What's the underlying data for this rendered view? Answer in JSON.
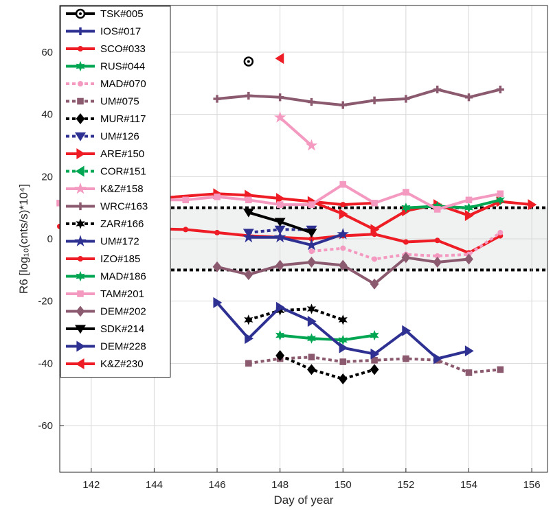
{
  "chart_data": {
    "type": "line",
    "xlabel": "Day of year",
    "ylabel": "R6 [log₁₀(cnts/s)*10⁴]",
    "xlim": [
      141,
      156.5
    ],
    "ylim": [
      -75,
      75
    ],
    "xticks": [
      142,
      144,
      146,
      148,
      150,
      152,
      154,
      156
    ],
    "yticks": [
      -60,
      -40,
      -20,
      0,
      20,
      40,
      60
    ],
    "grid": true,
    "legend_position": "top-left",
    "band": {
      "y0": -10,
      "y1": 10,
      "fill": "#f0f2f2",
      "border_style": "dotted",
      "border_color": "#000000"
    },
    "series": [
      {
        "name": "TSK#005",
        "color": "#000000",
        "style": "solid",
        "marker": "circle-dot",
        "x": [
          147
        ],
        "y": [
          57
        ]
      },
      {
        "name": "IOS#017",
        "color": "#2e3192",
        "style": "solid",
        "marker": "plus",
        "x": [],
        "y": []
      },
      {
        "name": "SCO#033",
        "color": "#ee1c24",
        "style": "solid",
        "marker": "dot",
        "x": [
          141,
          145,
          146,
          147,
          148,
          149,
          150,
          151,
          152,
          153,
          154,
          155
        ],
        "y": [
          4,
          3,
          2,
          1,
          0.5,
          0,
          1,
          1.5,
          -1,
          -0.5,
          -4.5,
          1
        ]
      },
      {
        "name": "RUS#044",
        "color": "#00a651",
        "style": "solid",
        "marker": "star6",
        "x": [
          148,
          149,
          150,
          151
        ],
        "y": [
          -31,
          -32,
          -32.5,
          -31
        ]
      },
      {
        "name": "MAD#070",
        "color": "#f49ac1",
        "style": "dotted",
        "marker": "dot",
        "x": [
          149,
          150,
          151,
          152,
          153,
          154,
          155
        ],
        "y": [
          -4,
          -3,
          -6.5,
          -5,
          -5.5,
          -5,
          2
        ]
      },
      {
        "name": "UM#075",
        "color": "#8c5a6e",
        "style": "dotted",
        "marker": "square",
        "x": [
          147,
          148,
          149,
          150,
          151,
          152,
          153,
          154,
          155
        ],
        "y": [
          -40,
          -38.5,
          -38,
          -39.5,
          -39,
          -38.5,
          -39,
          -43,
          -42
        ]
      },
      {
        "name": "MUR#117",
        "color": "#000000",
        "style": "dotted",
        "marker": "diamond",
        "x": [
          148,
          149,
          150,
          151
        ],
        "y": [
          -37.5,
          -42,
          -45,
          -42
        ]
      },
      {
        "name": "UM#126",
        "color": "#2e3192",
        "style": "dotted",
        "marker": "triangle-down",
        "x": [
          147,
          148,
          149
        ],
        "y": [
          2,
          3,
          3
        ]
      },
      {
        "name": "ARE#150",
        "color": "#ee1c24",
        "style": "solid",
        "marker": "triangle-right",
        "x": [
          144,
          146,
          147,
          148,
          149,
          150,
          151,
          152,
          153,
          154,
          155,
          156
        ],
        "y": [
          13,
          14.5,
          14,
          13,
          12,
          8,
          3,
          9,
          11,
          7.5,
          12,
          11
        ]
      },
      {
        "name": "COR#151",
        "color": "#00a651",
        "style": "dotted",
        "marker": "triangle-left",
        "x": [],
        "y": []
      },
      {
        "name": "K&Z#158",
        "color": "#f49ac1",
        "style": "solid",
        "marker": "star5",
        "x": [
          148,
          149
        ],
        "y": [
          39,
          30
        ]
      },
      {
        "name": "WRC#163",
        "color": "#8c5a6e",
        "style": "solid",
        "marker": "plus",
        "x": [
          146,
          147,
          148,
          149,
          150,
          151,
          152,
          153,
          154,
          155
        ],
        "y": [
          45,
          46,
          45.5,
          44,
          43,
          44.5,
          45,
          48,
          45.5,
          48
        ]
      },
      {
        "name": "ZAR#166",
        "color": "#000000",
        "style": "dotted",
        "marker": "star6",
        "x": [
          147,
          148,
          149,
          150
        ],
        "y": [
          -26,
          -23,
          -22.5,
          -26
        ]
      },
      {
        "name": "UM#172",
        "color": "#2e3192",
        "style": "solid",
        "marker": "star5",
        "x": [
          147,
          148,
          149,
          150
        ],
        "y": [
          0.5,
          0.5,
          -2,
          1.5
        ]
      },
      {
        "name": "IZO#185",
        "color": "#ee1c24",
        "style": "solid",
        "marker": "dot",
        "x": [
          149,
          150,
          151
        ],
        "y": [
          12,
          11,
          11.5
        ]
      },
      {
        "name": "MAD#186",
        "color": "#00a651",
        "style": "solid",
        "marker": "star6",
        "x": [
          152,
          153,
          154,
          155
        ],
        "y": [
          10,
          10.5,
          10,
          12.5
        ]
      },
      {
        "name": "TAM#201",
        "color": "#f49ac1",
        "style": "solid",
        "marker": "square",
        "x": [
          141,
          144,
          145,
          146,
          147,
          148,
          149,
          150,
          151,
          152,
          153,
          154,
          155
        ],
        "y": [
          11.5,
          12.5,
          12.5,
          13.5,
          12.5,
          11,
          11,
          17.5,
          11.5,
          15,
          9.5,
          12.5,
          14.5
        ]
      },
      {
        "name": "DEM#202",
        "color": "#8c5a6e",
        "style": "solid",
        "marker": "diamond",
        "x": [
          146,
          147,
          148,
          149,
          150,
          151,
          152,
          153,
          154
        ],
        "y": [
          -9,
          -11.5,
          -8.5,
          -7.5,
          -8.5,
          -14.5,
          -6,
          -7.5,
          -6.5
        ]
      },
      {
        "name": "SDK#214",
        "color": "#000000",
        "style": "solid",
        "marker": "triangle-down",
        "x": [
          147,
          148,
          149
        ],
        "y": [
          8.5,
          5.5,
          2
        ]
      },
      {
        "name": "DEM#228",
        "color": "#2e3192",
        "style": "solid",
        "marker": "triangle-right",
        "x": [
          146,
          147,
          148,
          149,
          150,
          151,
          152,
          153,
          154
        ],
        "y": [
          -20.5,
          -32,
          -22,
          -26.5,
          -35,
          -37,
          -29.5,
          -38.5,
          -36
        ]
      },
      {
        "name": "K&Z#230",
        "color": "#ee1c24",
        "style": "solid",
        "marker": "triangle-left",
        "x": [
          148
        ],
        "y": [
          58
        ]
      }
    ]
  }
}
